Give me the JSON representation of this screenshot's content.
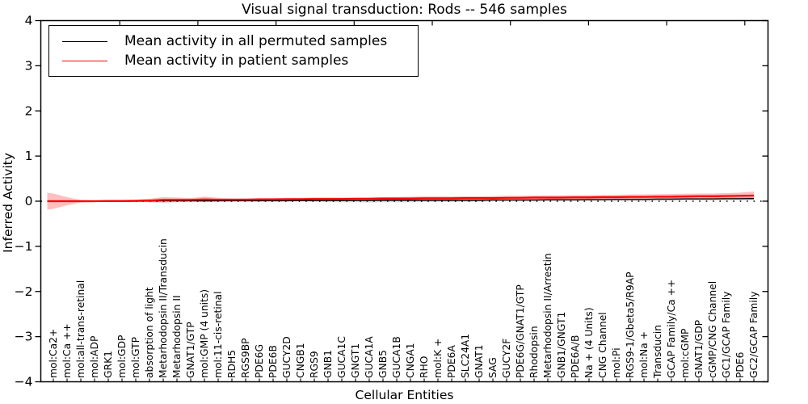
{
  "title": "Visual signal transduction: Rods -- 546 samples",
  "chart_data": {
    "type": "line",
    "title": "Visual signal transduction: Rods -- 546 samples",
    "xlabel": "Cellular Entities",
    "ylabel": "Inferred Activity",
    "ylim": [
      -4,
      4
    ],
    "grid": false,
    "legend_position": "upper left",
    "zero_reference_line": "dotted",
    "yticks": [
      {
        "value": 4,
        "label": "4"
      },
      {
        "value": 3,
        "label": "3"
      },
      {
        "value": 2,
        "label": "2"
      },
      {
        "value": 1,
        "label": "1"
      },
      {
        "value": 0,
        "label": "0"
      },
      {
        "value": -1,
        "label": "−1"
      },
      {
        "value": -2,
        "label": "−2"
      },
      {
        "value": -3,
        "label": "−3"
      },
      {
        "value": -4,
        "label": "−4"
      }
    ],
    "categories": [
      "mol:Ca2+",
      "mol:Ca ++",
      "mol:all-trans-retinal",
      "mol:ADP",
      "GRK1",
      "mol:GDP",
      "mol:GTP",
      "absorption of light",
      "Metarhodopsin II/Transducin",
      "Metarhodopsin II",
      "GNAT1/GTP",
      "mol:GMP (4 units)",
      "mol:11-cis-retinal",
      "RDH5",
      "RGS9BP",
      "PDE6G",
      "PDE6B",
      "GUCY2D",
      "CNGB1",
      "RGS9",
      "GNB1",
      "GUCA1C",
      "GNGT1",
      "GUCA1A",
      "GNB5",
      "GUCA1B",
      "CNGA1",
      "RHO",
      "mol:K +",
      "PDE6A",
      "SLC24A1",
      "GNAT1",
      "SAG",
      "GUCY2F",
      "PDE6G/GNAT1/GTP",
      "Rhodopsin",
      "Metarhodopsin II/Arrestin",
      "GNB1/GNGT1",
      "PDE6A/B",
      "Na + (4 Units)",
      "CNG Channel",
      "mol:Pi",
      "RGS9-1/Gbeta5/R9AP",
      "mol:Na +",
      "Transducin",
      "GCAP Family/Ca ++",
      "mol:cGMP",
      "GNAT1/GDP",
      "cGMP/CNG Channel",
      "GC1/GCAP Family",
      "PDE6",
      "GC2/GCAP Family"
    ],
    "series": [
      {
        "name": "Mean activity in all permuted samples",
        "color": "#000000",
        "band_color": "rgba(70,70,70,0.18)",
        "line_width": 1.4,
        "values": [
          0,
          0,
          0,
          0,
          0,
          0,
          0,
          0.005,
          0.01,
          0.01,
          0.01,
          0.01,
          0.01,
          0.01,
          0.01,
          0.01,
          0.01,
          0.01,
          0.015,
          0.015,
          0.015,
          0.015,
          0.015,
          0.015,
          0.02,
          0.02,
          0.02,
          0.02,
          0.02,
          0.02,
          0.02,
          0.02,
          0.025,
          0.025,
          0.025,
          0.025,
          0.03,
          0.03,
          0.03,
          0.035,
          0.035,
          0.04,
          0.04,
          0.04,
          0.045,
          0.045,
          0.05,
          0.05,
          0.05,
          0.055,
          0.055,
          0.06
        ],
        "band": [
          0.02,
          0.015,
          0.01,
          0.01,
          0.01,
          0.01,
          0.01,
          0.02,
          0.035,
          0.03,
          0.025,
          0.03,
          0.025,
          0.02,
          0.02,
          0.02,
          0.02,
          0.02,
          0.025,
          0.03,
          0.035,
          0.04,
          0.04,
          0.045,
          0.045,
          0.045,
          0.045,
          0.04,
          0.04,
          0.04,
          0.035,
          0.035,
          0.03,
          0.03,
          0.03,
          0.03,
          0.03,
          0.03,
          0.03,
          0.03,
          0.03,
          0.03,
          0.035,
          0.035,
          0.035,
          0.035,
          0.035,
          0.035,
          0.04,
          0.04,
          0.04,
          0.045
        ]
      },
      {
        "name": "Mean activity in patient samples",
        "color": "#ff0000",
        "band_color": "rgba(255,0,0,0.25)",
        "line_width": 2.2,
        "values": [
          0,
          0,
          0,
          0,
          0.005,
          0.005,
          0.01,
          0.015,
          0.03,
          0.03,
          0.03,
          0.04,
          0.035,
          0.035,
          0.035,
          0.04,
          0.04,
          0.045,
          0.045,
          0.05,
          0.05,
          0.05,
          0.055,
          0.055,
          0.06,
          0.06,
          0.06,
          0.065,
          0.065,
          0.065,
          0.07,
          0.07,
          0.07,
          0.075,
          0.075,
          0.08,
          0.08,
          0.08,
          0.085,
          0.085,
          0.09,
          0.09,
          0.095,
          0.095,
          0.1,
          0.1,
          0.105,
          0.11,
          0.11,
          0.115,
          0.12,
          0.125
        ],
        "band": [
          0.17,
          0.09,
          0.03,
          0.02,
          0.02,
          0.02,
          0.02,
          0.04,
          0.06,
          0.05,
          0.04,
          0.06,
          0.04,
          0.03,
          0.03,
          0.03,
          0.03,
          0.03,
          0.03,
          0.03,
          0.03,
          0.03,
          0.03,
          0.03,
          0.035,
          0.035,
          0.04,
          0.04,
          0.04,
          0.04,
          0.04,
          0.04,
          0.045,
          0.045,
          0.045,
          0.045,
          0.05,
          0.05,
          0.05,
          0.05,
          0.05,
          0.05,
          0.055,
          0.055,
          0.055,
          0.06,
          0.06,
          0.06,
          0.06,
          0.065,
          0.07,
          0.09
        ]
      }
    ]
  },
  "legend": {
    "items": [
      {
        "label": "Mean activity in all permuted samples"
      },
      {
        "label": "Mean activity in patient samples"
      }
    ]
  }
}
